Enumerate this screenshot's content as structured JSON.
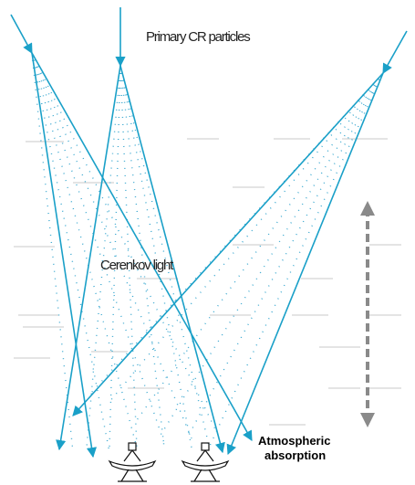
{
  "labels": {
    "primary": "Primary CR particles",
    "cerenkov": "Cerenkov light",
    "absorption": [
      "Atmospheric",
      "absorption"
    ]
  }
}
